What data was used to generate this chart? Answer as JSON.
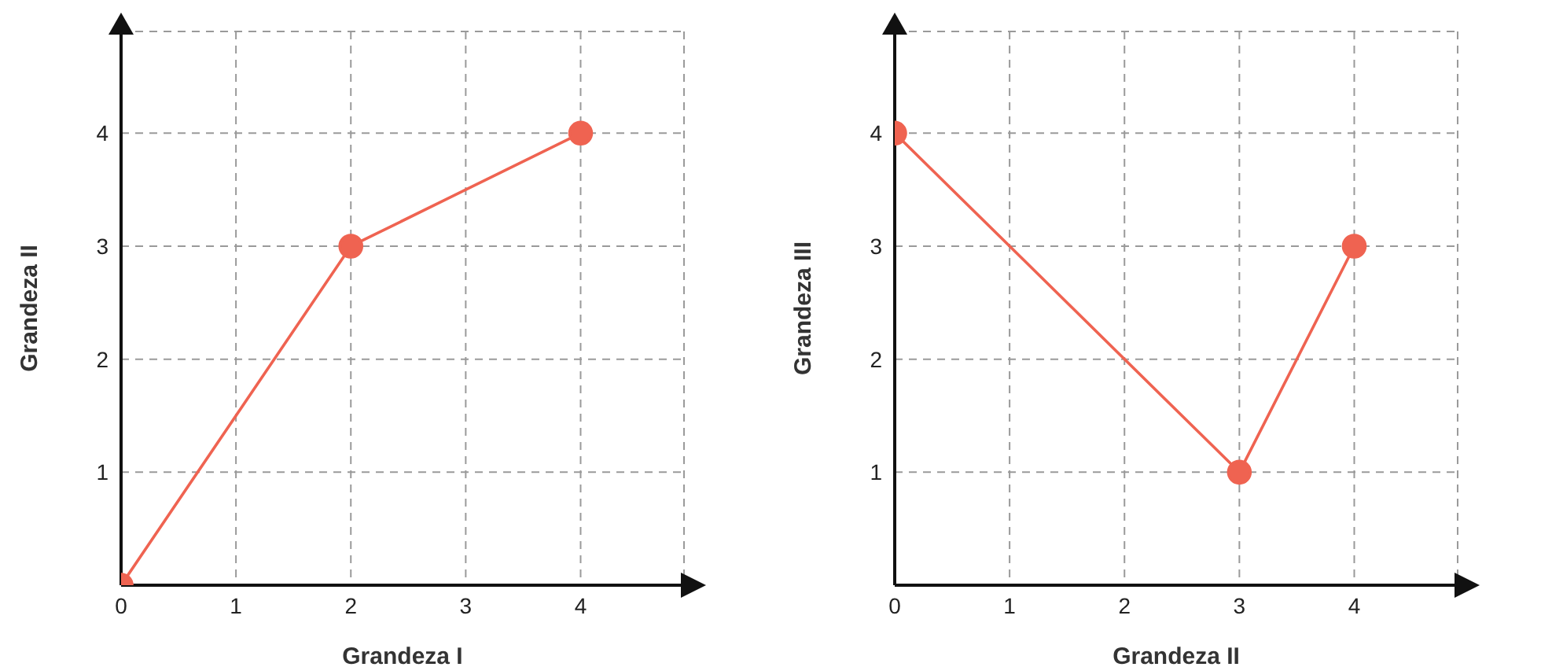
{
  "chart_data": [
    {
      "type": "line",
      "xlabel": "Grandeza I",
      "ylabel": "Grandeza II",
      "x": [
        0,
        2,
        4
      ],
      "series": [
        {
          "color": "#ef6351",
          "values": [
            0,
            3,
            4
          ]
        }
      ],
      "xlim": [
        0,
        4.9
      ],
      "ylim": [
        0,
        4.9
      ],
      "xticks": [
        0,
        1,
        2,
        3,
        4
      ],
      "yticks": [
        {
          "value": 0,
          "label": null
        },
        1,
        2,
        3,
        4
      ],
      "grid": true,
      "marker": "circle",
      "line_style": "solid",
      "legend": false
    },
    {
      "type": "line",
      "xlabel": "Grandeza II",
      "ylabel": "Grandeza III",
      "x": [
        0,
        3,
        4
      ],
      "series": [
        {
          "color": "#ef6351",
          "values": [
            4,
            1,
            3
          ]
        }
      ],
      "xlim": [
        0,
        4.9
      ],
      "ylim": [
        0,
        4.9
      ],
      "xticks": [
        0,
        1,
        2,
        3,
        4
      ],
      "yticks": [
        {
          "value": 0,
          "label": null
        },
        1,
        2,
        3,
        4
      ],
      "grid": true,
      "marker": "circle",
      "line_style": "solid",
      "legend": false
    }
  ]
}
